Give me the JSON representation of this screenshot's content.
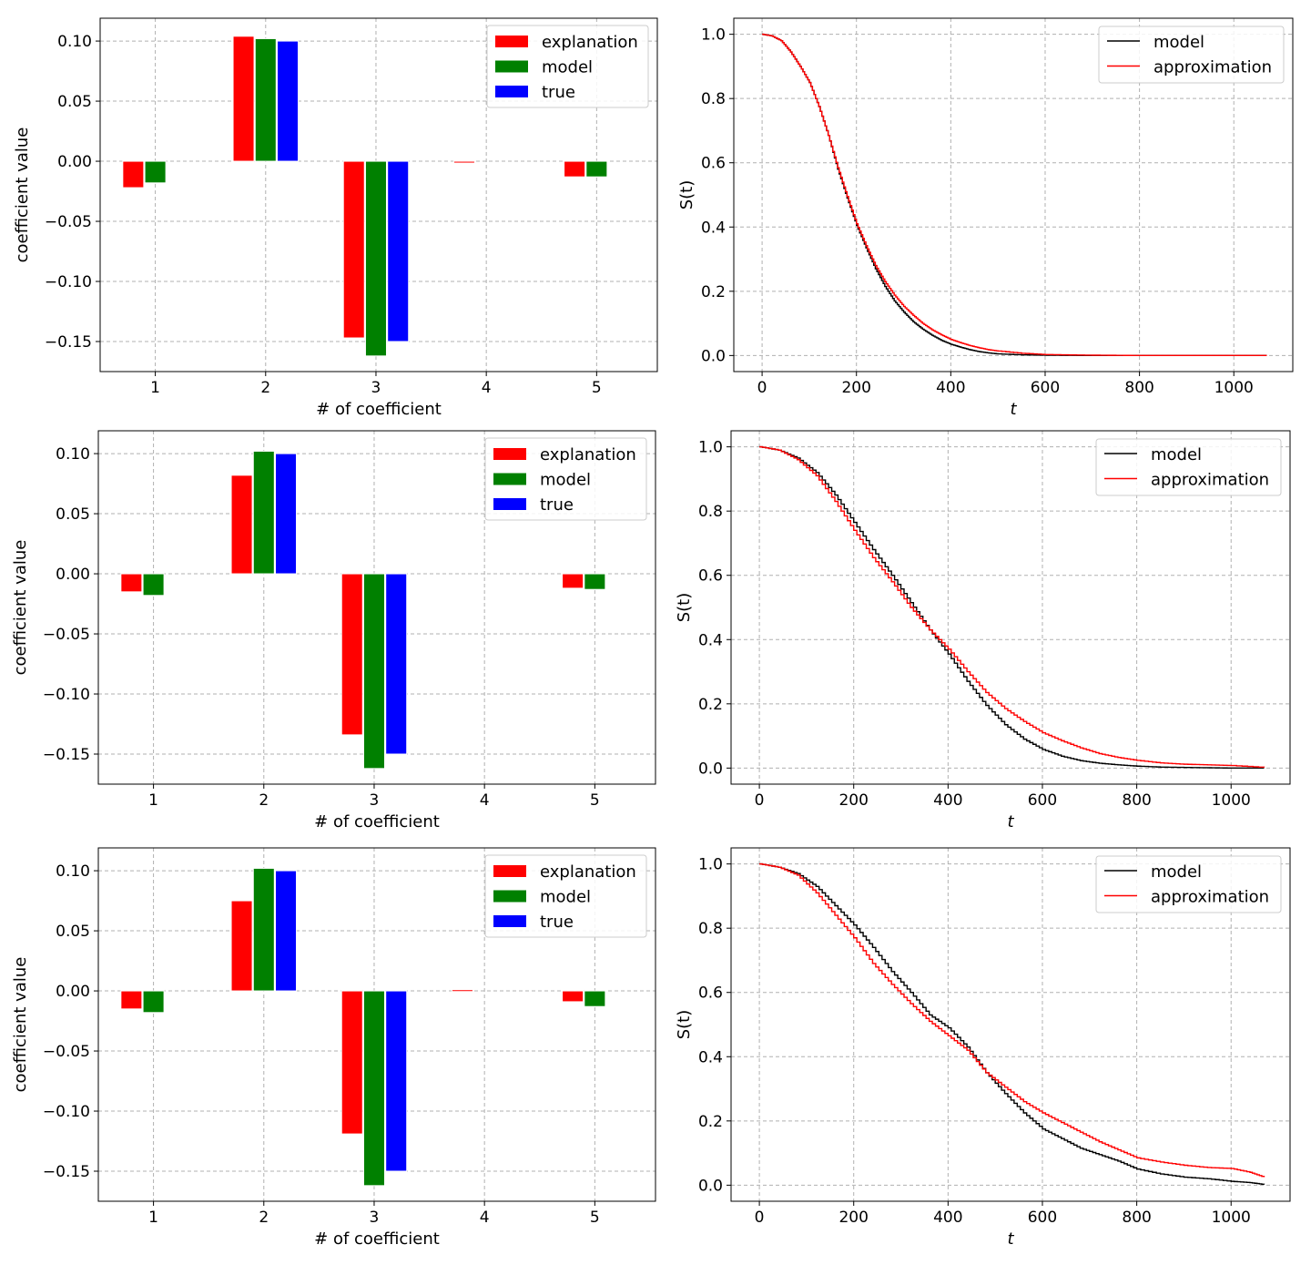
{
  "chart_data": [
    {
      "type": "bar",
      "categories": [
        "1",
        "2",
        "3",
        "4",
        "5"
      ],
      "series": [
        {
          "name": "explanation",
          "color": "#ff0000",
          "values": [
            -0.022,
            0.104,
            -0.147,
            -0.001,
            -0.013
          ]
        },
        {
          "name": "model",
          "color": "#008000",
          "values": [
            -0.018,
            0.102,
            -0.162,
            0,
            -0.013
          ]
        },
        {
          "name": "true",
          "color": "#0000ff",
          "values": [
            0,
            0.1,
            -0.15,
            0,
            0
          ]
        }
      ],
      "xlabel": "# of coefficient",
      "ylabel": "coefficient value",
      "ylim": [
        -0.175,
        0.119
      ],
      "yticks": [
        -0.15,
        -0.1,
        -0.05,
        0.0,
        0.05,
        0.1
      ],
      "ytick_labels": [
        "−0.15",
        "−0.10",
        "−0.05",
        "0.00",
        "0.05",
        "0.10"
      ],
      "grid": true,
      "legend": "top-right"
    },
    {
      "type": "line",
      "step": true,
      "series": [
        {
          "name": "model",
          "color": "#000000",
          "x": [
            0,
            20,
            40,
            60,
            80,
            100,
            120,
            140,
            160,
            180,
            200,
            220,
            240,
            260,
            280,
            300,
            320,
            340,
            360,
            380,
            400,
            420,
            440,
            460,
            480,
            500,
            550,
            600,
            700,
            800,
            900,
            1000,
            1070
          ],
          "y": [
            1.0,
            0.995,
            0.98,
            0.945,
            0.9,
            0.85,
            0.775,
            0.685,
            0.58,
            0.49,
            0.405,
            0.335,
            0.27,
            0.215,
            0.17,
            0.135,
            0.105,
            0.082,
            0.063,
            0.047,
            0.035,
            0.026,
            0.018,
            0.012,
            0.008,
            0.005,
            0.002,
            0.001,
            0.0,
            0.0,
            0.0,
            0.0,
            0.0
          ]
        },
        {
          "name": "approximation",
          "color": "#ff0000",
          "x": [
            0,
            20,
            40,
            60,
            80,
            100,
            120,
            140,
            160,
            180,
            200,
            220,
            240,
            260,
            280,
            300,
            320,
            340,
            360,
            380,
            400,
            420,
            440,
            460,
            480,
            500,
            550,
            600,
            700,
            800,
            900,
            1000,
            1070
          ],
          "y": [
            1.0,
            0.995,
            0.98,
            0.945,
            0.9,
            0.85,
            0.775,
            0.685,
            0.585,
            0.495,
            0.41,
            0.342,
            0.28,
            0.23,
            0.188,
            0.153,
            0.125,
            0.1,
            0.08,
            0.064,
            0.05,
            0.04,
            0.031,
            0.024,
            0.018,
            0.014,
            0.007,
            0.003,
            0.001,
            0.0,
            0.0,
            0.0,
            0.0
          ]
        }
      ],
      "xlabel": "t",
      "ylabel": "S(t)",
      "xlim": [
        -60,
        1125
      ],
      "ylim": [
        -0.05,
        1.05
      ],
      "xticks": [
        0,
        200,
        400,
        600,
        800,
        1000
      ],
      "yticks": [
        0.0,
        0.2,
        0.4,
        0.6,
        0.8,
        1.0
      ],
      "xtick_labels": [
        "0",
        "200",
        "400",
        "600",
        "800",
        "1000"
      ],
      "ytick_labels": [
        "0.0",
        "0.2",
        "0.4",
        "0.6",
        "0.8",
        "1.0"
      ],
      "grid": true,
      "legend": "top-right"
    },
    {
      "type": "bar",
      "categories": [
        "1",
        "2",
        "3",
        "4",
        "5"
      ],
      "series": [
        {
          "name": "explanation",
          "color": "#ff0000",
          "values": [
            -0.015,
            0.082,
            -0.134,
            0,
            -0.012
          ]
        },
        {
          "name": "model",
          "color": "#008000",
          "values": [
            -0.018,
            0.102,
            -0.162,
            0,
            -0.013
          ]
        },
        {
          "name": "true",
          "color": "#0000ff",
          "values": [
            0,
            0.1,
            -0.15,
            0,
            0
          ]
        }
      ],
      "xlabel": "# of coefficient",
      "ylabel": "coefficient value",
      "ylim": [
        -0.175,
        0.119
      ],
      "yticks": [
        -0.15,
        -0.1,
        -0.05,
        0.0,
        0.05,
        0.1
      ],
      "ytick_labels": [
        "−0.15",
        "−0.10",
        "−0.05",
        "0.00",
        "0.05",
        "0.10"
      ],
      "grid": true,
      "legend": "top-right"
    },
    {
      "type": "line",
      "step": true,
      "series": [
        {
          "name": "model",
          "color": "#000000",
          "x": [
            0,
            40,
            80,
            120,
            160,
            200,
            240,
            280,
            320,
            360,
            400,
            440,
            480,
            520,
            560,
            600,
            640,
            680,
            720,
            760,
            800,
            850,
            900,
            950,
            1000,
            1070
          ],
          "y": [
            1.0,
            0.99,
            0.965,
            0.92,
            0.85,
            0.765,
            0.68,
            0.6,
            0.515,
            0.43,
            0.355,
            0.27,
            0.195,
            0.135,
            0.09,
            0.058,
            0.037,
            0.023,
            0.015,
            0.01,
            0.006,
            0.003,
            0.002,
            0.001,
            0.0,
            0.0
          ]
        },
        {
          "name": "approximation",
          "color": "#ff0000",
          "x": [
            0,
            40,
            80,
            120,
            160,
            200,
            240,
            280,
            320,
            360,
            400,
            440,
            480,
            520,
            560,
            600,
            640,
            680,
            720,
            760,
            800,
            850,
            900,
            950,
            1000,
            1070
          ],
          "y": [
            1.0,
            0.99,
            0.96,
            0.91,
            0.83,
            0.74,
            0.655,
            0.58,
            0.5,
            0.43,
            0.37,
            0.3,
            0.235,
            0.185,
            0.145,
            0.11,
            0.085,
            0.063,
            0.045,
            0.033,
            0.024,
            0.016,
            0.012,
            0.01,
            0.008,
            0.002
          ]
        }
      ],
      "xlabel": "t",
      "ylabel": "S(t)",
      "xlim": [
        -60,
        1125
      ],
      "ylim": [
        -0.05,
        1.05
      ],
      "xticks": [
        0,
        200,
        400,
        600,
        800,
        1000
      ],
      "yticks": [
        0.0,
        0.2,
        0.4,
        0.6,
        0.8,
        1.0
      ],
      "xtick_labels": [
        "0",
        "200",
        "400",
        "600",
        "800",
        "1000"
      ],
      "ytick_labels": [
        "0.0",
        "0.2",
        "0.4",
        "0.6",
        "0.8",
        "1.0"
      ],
      "grid": true,
      "legend": "top-right"
    },
    {
      "type": "bar",
      "categories": [
        "1",
        "2",
        "3",
        "4",
        "5"
      ],
      "series": [
        {
          "name": "explanation",
          "color": "#ff0000",
          "values": [
            -0.015,
            0.075,
            -0.119,
            0.001,
            -0.009
          ]
        },
        {
          "name": "model",
          "color": "#008000",
          "values": [
            -0.018,
            0.102,
            -0.162,
            0,
            -0.013
          ]
        },
        {
          "name": "true",
          "color": "#0000ff",
          "values": [
            0,
            0.1,
            -0.15,
            0,
            0
          ]
        }
      ],
      "xlabel": "# of coefficient",
      "ylabel": "coefficient value",
      "ylim": [
        -0.175,
        0.119
      ],
      "yticks": [
        -0.15,
        -0.1,
        -0.05,
        0.0,
        0.05,
        0.1
      ],
      "ytick_labels": [
        "−0.15",
        "−0.10",
        "−0.05",
        "0.00",
        "0.05",
        "0.10"
      ],
      "grid": true,
      "legend": "top-right"
    },
    {
      "type": "line",
      "step": true,
      "series": [
        {
          "name": "model",
          "color": "#000000",
          "x": [
            0,
            40,
            80,
            120,
            160,
            200,
            240,
            280,
            320,
            360,
            400,
            440,
            480,
            520,
            560,
            600,
            640,
            680,
            720,
            760,
            800,
            850,
            900,
            950,
            1000,
            1040,
            1070
          ],
          "y": [
            1.0,
            0.99,
            0.97,
            0.93,
            0.87,
            0.81,
            0.74,
            0.665,
            0.6,
            0.53,
            0.49,
            0.43,
            0.35,
            0.285,
            0.225,
            0.175,
            0.145,
            0.115,
            0.095,
            0.075,
            0.05,
            0.035,
            0.025,
            0.02,
            0.012,
            0.008,
            0.002
          ]
        },
        {
          "name": "approximation",
          "color": "#ff0000",
          "x": [
            0,
            40,
            80,
            120,
            160,
            200,
            240,
            280,
            320,
            360,
            400,
            440,
            480,
            520,
            560,
            600,
            640,
            680,
            720,
            760,
            800,
            850,
            900,
            950,
            1000,
            1040,
            1070
          ],
          "y": [
            1.0,
            0.99,
            0.965,
            0.91,
            0.84,
            0.77,
            0.69,
            0.625,
            0.565,
            0.51,
            0.465,
            0.42,
            0.35,
            0.305,
            0.26,
            0.225,
            0.195,
            0.165,
            0.135,
            0.11,
            0.085,
            0.072,
            0.062,
            0.055,
            0.052,
            0.04,
            0.025
          ]
        }
      ],
      "xlabel": "t",
      "ylabel": "S(t)",
      "xlim": [
        -60,
        1125
      ],
      "ylim": [
        -0.05,
        1.05
      ],
      "xticks": [
        0,
        200,
        400,
        600,
        800,
        1000
      ],
      "yticks": [
        0.0,
        0.2,
        0.4,
        0.6,
        0.8,
        1.0
      ],
      "xtick_labels": [
        "0",
        "200",
        "400",
        "600",
        "800",
        "1000"
      ],
      "ytick_labels": [
        "0.0",
        "0.2",
        "0.4",
        "0.6",
        "0.8",
        "1.0"
      ],
      "grid": true,
      "legend": "top-right"
    }
  ]
}
